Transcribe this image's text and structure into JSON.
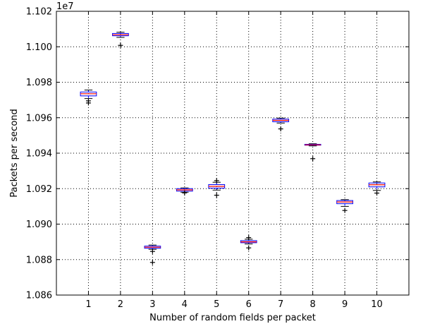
{
  "chart_data": {
    "type": "box",
    "xlabel": "Number of random fields per packet",
    "ylabel": "Packets per second",
    "y_scale_label": "1e7",
    "ylim": [
      1.086,
      1.102
    ],
    "grid": true,
    "categories": [
      "1",
      "2",
      "3",
      "4",
      "5",
      "6",
      "7",
      "8",
      "9",
      "10"
    ],
    "y_ticks": [
      "1.086",
      "1.088",
      "1.090",
      "1.092",
      "1.094",
      "1.096",
      "1.098",
      "1.100",
      "1.102"
    ],
    "boxes": [
      {
        "category": "1",
        "whisker_low": 1.09708,
        "q1": 1.09723,
        "median": 1.09735,
        "q3": 1.09745,
        "whisker_high": 1.09756,
        "outliers": [
          1.09695,
          1.09683
        ]
      },
      {
        "category": "2",
        "whisker_low": 1.10053,
        "q1": 1.10062,
        "median": 1.10068,
        "q3": 1.10075,
        "whisker_high": 1.10082,
        "outliers": [
          1.10008
        ]
      },
      {
        "category": "3",
        "whisker_low": 1.08858,
        "q1": 1.08864,
        "median": 1.0887,
        "q3": 1.08876,
        "whisker_high": 1.08882,
        "outliers": [
          1.08846,
          1.08784
        ]
      },
      {
        "category": "4",
        "whisker_low": 1.0918,
        "q1": 1.09186,
        "median": 1.09193,
        "q3": 1.092,
        "whisker_high": 1.09204,
        "outliers": [
          1.09176
        ]
      },
      {
        "category": "5",
        "whisker_low": 1.09192,
        "q1": 1.09203,
        "median": 1.09213,
        "q3": 1.09223,
        "whisker_high": 1.09236,
        "outliers": [
          1.09245,
          1.09163
        ]
      },
      {
        "category": "6",
        "whisker_low": 1.08888,
        "q1": 1.08895,
        "median": 1.089,
        "q3": 1.08907,
        "whisker_high": 1.08915,
        "outliers": [
          1.08924,
          1.08866
        ]
      },
      {
        "category": "7",
        "whisker_low": 1.0957,
        "q1": 1.09577,
        "median": 1.09585,
        "q3": 1.09592,
        "whisker_high": 1.09598,
        "outliers": [
          1.09537
        ]
      },
      {
        "category": "8",
        "whisker_low": 1.09441,
        "q1": 1.09445,
        "median": 1.09447,
        "q3": 1.0945,
        "whisker_high": 1.09453,
        "outliers": [
          1.09369
        ]
      },
      {
        "category": "9",
        "whisker_low": 1.091,
        "q1": 1.09115,
        "median": 1.09125,
        "q3": 1.09133,
        "whisker_high": 1.09138,
        "outliers": [
          1.09077
        ]
      },
      {
        "category": "10",
        "whisker_low": 1.0919,
        "q1": 1.0921,
        "median": 1.09222,
        "q3": 1.09232,
        "whisker_high": 1.09238,
        "outliers": [
          1.09175
        ]
      }
    ],
    "colors": {
      "box": "#0000ff",
      "median": "#ff0000",
      "whisker": "#0000ff",
      "cap": "#000000",
      "outlier": "#000000",
      "grid": "#000000"
    }
  }
}
